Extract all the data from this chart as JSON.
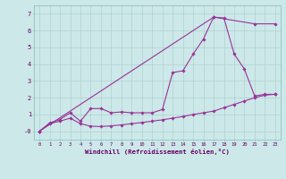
{
  "xlabel": "Windchill (Refroidissement éolien,°C)",
  "bg_color": "#cce8e8",
  "line_color": "#993399",
  "grid_color": "#aacccc",
  "ytick_labels": [
    "-0",
    "1",
    "2",
    "3",
    "4",
    "5",
    "6",
    "7"
  ],
  "ytick_vals": [
    0,
    1,
    2,
    3,
    4,
    5,
    6,
    7
  ],
  "xtick_vals": [
    0,
    1,
    2,
    3,
    4,
    5,
    6,
    7,
    8,
    9,
    10,
    11,
    12,
    13,
    14,
    15,
    16,
    17,
    18,
    19,
    20,
    21,
    22,
    23
  ],
  "xlim": [
    -0.5,
    23.5
  ],
  "ylim": [
    -0.5,
    7.5
  ],
  "line1_x": [
    0,
    1,
    2,
    3,
    4,
    5,
    6,
    7,
    8,
    9,
    10,
    11,
    12,
    13,
    14,
    15,
    16,
    17,
    18,
    19,
    20,
    21,
    22,
    23
  ],
  "line1_y": [
    0.0,
    0.5,
    0.7,
    1.1,
    0.6,
    1.35,
    1.35,
    1.1,
    1.15,
    1.1,
    1.1,
    1.1,
    1.3,
    3.5,
    3.6,
    4.6,
    5.5,
    6.8,
    6.75,
    4.6,
    3.7,
    2.1,
    2.2,
    2.2
  ],
  "line2_x": [
    0,
    17,
    21,
    23
  ],
  "line2_y": [
    0.0,
    6.8,
    6.4,
    6.4
  ],
  "line3_x": [
    0,
    1,
    2,
    3,
    4,
    5,
    6,
    7,
    8,
    9,
    10,
    11,
    12,
    13,
    14,
    15,
    16,
    17,
    18,
    19,
    20,
    21,
    22,
    23
  ],
  "line3_y": [
    0.0,
    0.45,
    0.6,
    0.78,
    0.45,
    0.3,
    0.28,
    0.32,
    0.38,
    0.45,
    0.52,
    0.6,
    0.68,
    0.78,
    0.88,
    1.0,
    1.1,
    1.2,
    1.4,
    1.6,
    1.8,
    2.0,
    2.15,
    2.2
  ]
}
